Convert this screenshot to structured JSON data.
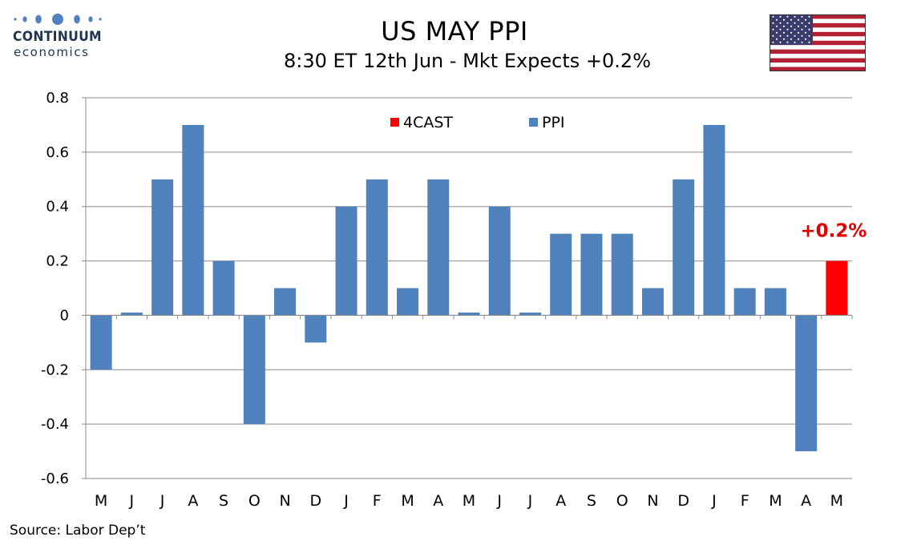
{
  "logo": {
    "name": "CONTINUUM",
    "sub": "economics"
  },
  "header": {
    "title": "US MAY PPI",
    "subtitle": "8:30 ET 12th Jun - Mkt Expects +0.2%"
  },
  "flag": {
    "icon": "us-flag-icon",
    "red": "#b22234",
    "blue": "#3c3b6e"
  },
  "source": "Source: Labor Dep’t",
  "chart_data": {
    "type": "bar",
    "categories": [
      "M",
      "J",
      "J",
      "A",
      "S",
      "O",
      "N",
      "D",
      "J",
      "F",
      "M",
      "A",
      "M",
      "J",
      "J",
      "A",
      "S",
      "O",
      "N",
      "D",
      "J",
      "F",
      "M",
      "A",
      "M"
    ],
    "series": [
      {
        "name": "PPI",
        "color": "#4f81bd",
        "values": [
          -0.2,
          0.01,
          0.5,
          0.7,
          0.2,
          -0.4,
          0.1,
          -0.1,
          0.4,
          0.5,
          0.1,
          0.5,
          0.01,
          0.4,
          0.01,
          0.3,
          0.3,
          0.3,
          0.1,
          0.5,
          0.7,
          0.1,
          0.1,
          -0.5,
          null
        ]
      },
      {
        "name": "4CAST",
        "color": "#ff0000",
        "values": [
          null,
          null,
          null,
          null,
          null,
          null,
          null,
          null,
          null,
          null,
          null,
          null,
          null,
          null,
          null,
          null,
          null,
          null,
          null,
          null,
          null,
          null,
          null,
          null,
          0.2
        ]
      }
    ],
    "ylim": [
      -0.6,
      0.8
    ],
    "yticks": [
      "-0.6",
      "-0.4",
      "-0.2",
      "0",
      "0.2",
      "0.4",
      "0.6",
      "0.8"
    ],
    "grid": true,
    "legend_placement": "top-center",
    "annotation": {
      "text": "+0.2%",
      "color": "#e00000"
    }
  }
}
